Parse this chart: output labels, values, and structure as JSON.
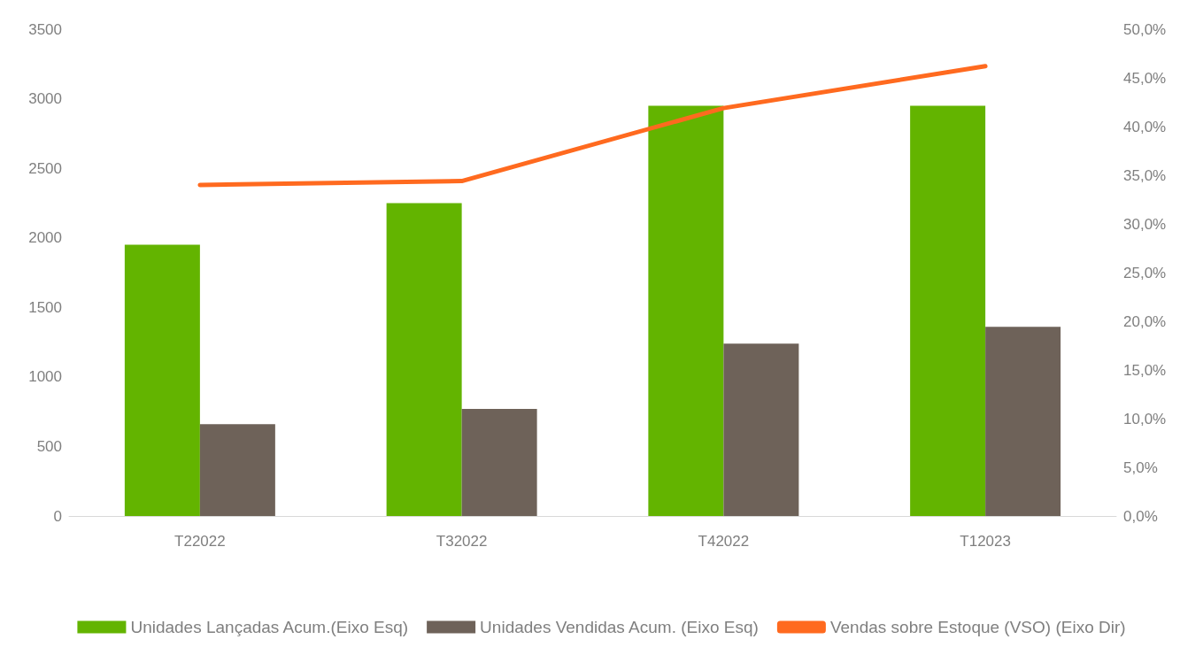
{
  "chart_data": {
    "type": "bar",
    "categories": [
      "T22022",
      "T32022",
      "T42022",
      "T12023"
    ],
    "series": [
      {
        "name": "Unidades Lançadas Acum.(Eixo Esq)",
        "color": "#63b400",
        "values": [
          1950,
          2250,
          2950,
          2950
        ]
      },
      {
        "name": "Unidades Vendidas Acum. (Eixo Esq)",
        "color": "#6e6259",
        "values": [
          660,
          770,
          1240,
          1360
        ]
      },
      {
        "name": "Vendas sobre Estoque (VSO) (Eixo Dir)",
        "type": "line",
        "axis": "y2",
        "color": "#ff6a1f",
        "values": [
          34.0,
          34.4,
          41.9,
          46.2
        ]
      }
    ],
    "ylim": [
      0,
      3500
    ],
    "yticks": [
      0,
      500,
      1000,
      1500,
      2000,
      2500,
      3000,
      3500
    ],
    "y2lim": [
      0,
      50
    ],
    "y2ticks": [
      {
        "value": 0,
        "label": "0,0%"
      },
      {
        "value": 5,
        "label": "5,0%"
      },
      {
        "value": 10,
        "label": "10,0%"
      },
      {
        "value": 15,
        "label": "15,0%"
      },
      {
        "value": 20,
        "label": "20,0%"
      },
      {
        "value": 25,
        "label": "25,0%"
      },
      {
        "value": 30,
        "label": "30,0%"
      },
      {
        "value": 35,
        "label": "35,0%"
      },
      {
        "value": 40,
        "label": "40,0%"
      },
      {
        "value": 45,
        "label": "45,0%"
      },
      {
        "value": 50,
        "label": "50,0%"
      }
    ],
    "grid": false,
    "legend": "bottom",
    "marker": "none",
    "line_style": "solid"
  }
}
